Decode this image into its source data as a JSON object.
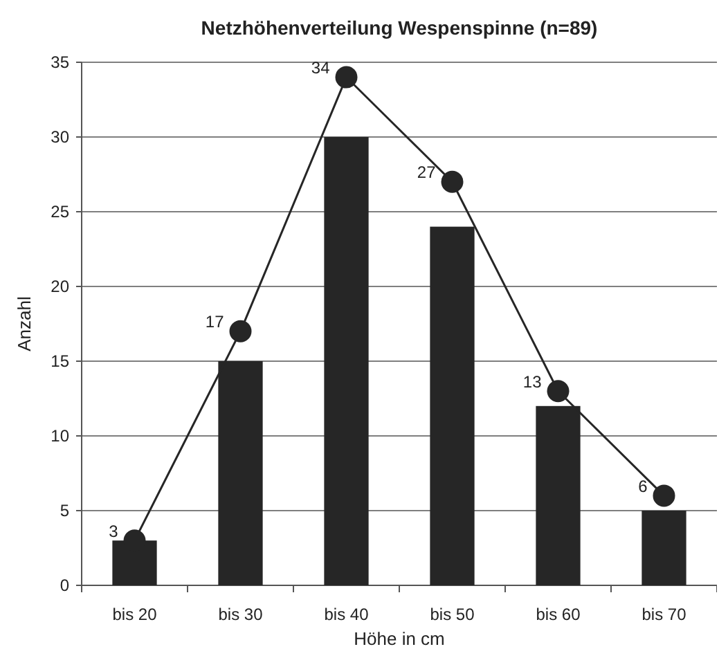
{
  "chart_data": {
    "type": "bar",
    "title": "Netzhöhenverteilung Wespenspinne (n=89)",
    "xlabel": "Höhe in cm",
    "ylabel": "Anzahl",
    "categories": [
      "bis 20",
      "bis 30",
      "bis 40",
      "bis 50",
      "bis 60",
      "bis 70"
    ],
    "series": [
      {
        "color": "#262626",
        "values": [
          3,
          15,
          30,
          24,
          12,
          5
        ]
      },
      {
        "type": "line",
        "color": "#262626",
        "marker": "circle",
        "values": [
          3,
          17,
          34,
          27,
          13,
          6
        ],
        "value_labels": [
          "3",
          "17",
          "34",
          "27",
          "13",
          "6"
        ]
      }
    ],
    "ylim": [
      0,
      35
    ],
    "yticks": [
      0,
      5,
      10,
      15,
      20,
      25,
      30,
      35
    ],
    "grid": "y"
  }
}
